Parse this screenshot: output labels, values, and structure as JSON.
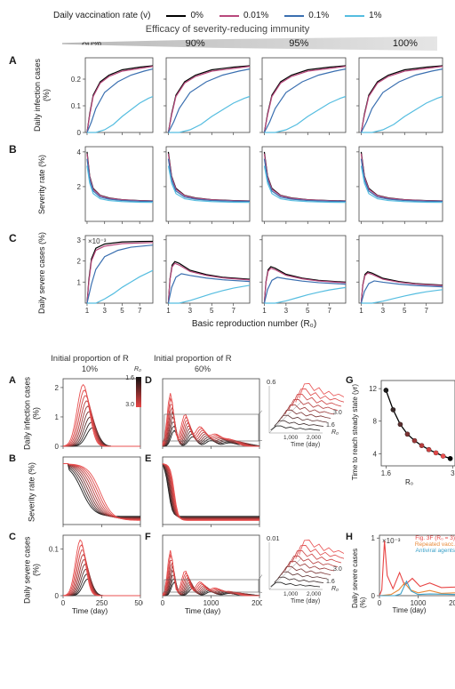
{
  "figure_top": {
    "legend_title": "Daily vaccination rate (v)",
    "legend": [
      {
        "label": "0%",
        "color": "#000000"
      },
      {
        "label": "0.01%",
        "color": "#b8487c"
      },
      {
        "label": "0.1%",
        "color": "#3a6fb0"
      },
      {
        "label": "1%",
        "color": "#55bde0"
      }
    ],
    "efficacy_title": "Efficacy of severity-reducing immunity",
    "efficacy_cols": [
      "80%",
      "90%",
      "95%",
      "100%"
    ],
    "xlabel": "Basic reproduction number (R₀)",
    "xticks": [
      1,
      3,
      5,
      7
    ],
    "xlim": [
      0.8,
      8.5
    ],
    "rows": [
      {
        "letter": "A",
        "ylabel": "Daily infection cases (%)",
        "ylim": [
          0,
          0.28
        ],
        "yticks": [
          0,
          0.1,
          0.2
        ],
        "panels_share_curves": true
      },
      {
        "letter": "B",
        "ylabel": "Severity rate (%)",
        "ylim": [
          0,
          4.3
        ],
        "yticks": [
          2,
          4
        ]
      },
      {
        "letter": "C",
        "ylabel": "Daily severe cases (%)",
        "note": "×10⁻³",
        "ylim": [
          0,
          3.2
        ],
        "yticks": [
          1,
          2,
          3
        ]
      }
    ],
    "curves_A": {
      "0%": [
        [
          1,
          0
        ],
        [
          1.3,
          0.07
        ],
        [
          1.7,
          0.14
        ],
        [
          2.5,
          0.19
        ],
        [
          3.5,
          0.215
        ],
        [
          5,
          0.235
        ],
        [
          7,
          0.245
        ],
        [
          8.5,
          0.25
        ]
      ],
      "0.01%": [
        [
          1,
          0
        ],
        [
          1.3,
          0.065
        ],
        [
          1.7,
          0.135
        ],
        [
          2.5,
          0.185
        ],
        [
          3.5,
          0.21
        ],
        [
          5,
          0.23
        ],
        [
          7,
          0.24
        ],
        [
          8.5,
          0.248
        ]
      ],
      "0.1%": [
        [
          1,
          0
        ],
        [
          1.5,
          0.04
        ],
        [
          2,
          0.09
        ],
        [
          3,
          0.15
        ],
        [
          4.5,
          0.19
        ],
        [
          6,
          0.215
        ],
        [
          7.5,
          0.23
        ],
        [
          8.5,
          0.238
        ]
      ],
      "1%": [
        [
          1,
          0
        ],
        [
          2,
          0
        ],
        [
          3,
          0.01
        ],
        [
          4,
          0.03
        ],
        [
          5,
          0.06
        ],
        [
          6,
          0.085
        ],
        [
          7,
          0.11
        ],
        [
          8,
          0.128
        ],
        [
          8.5,
          0.135
        ]
      ]
    },
    "curves_B_base": {
      "0%": [
        [
          1,
          4.0
        ],
        [
          1.3,
          2.6
        ],
        [
          1.7,
          1.9
        ],
        [
          2.5,
          1.5
        ],
        [
          3.5,
          1.35
        ],
        [
          5,
          1.25
        ],
        [
          7,
          1.2
        ],
        [
          8.5,
          1.18
        ]
      ],
      "0.01%": [
        [
          1,
          3.9
        ],
        [
          1.3,
          2.55
        ],
        [
          1.7,
          1.85
        ],
        [
          2.5,
          1.48
        ],
        [
          3.5,
          1.33
        ],
        [
          5,
          1.24
        ],
        [
          7,
          1.19
        ],
        [
          8.5,
          1.17
        ]
      ],
      "0.1%": [
        [
          1,
          3.6
        ],
        [
          1.3,
          2.4
        ],
        [
          1.7,
          1.75
        ],
        [
          2.5,
          1.4
        ],
        [
          3.5,
          1.28
        ],
        [
          5,
          1.2
        ],
        [
          7,
          1.16
        ],
        [
          8.5,
          1.15
        ]
      ],
      "1%": [
        [
          1,
          3.2
        ],
        [
          1.3,
          2.2
        ],
        [
          1.7,
          1.6
        ],
        [
          2.5,
          1.3
        ],
        [
          3.5,
          1.2
        ],
        [
          5,
          1.14
        ],
        [
          7,
          1.1
        ],
        [
          8.5,
          1.09
        ]
      ]
    },
    "curves_C_col1": {
      "0%": [
        [
          1,
          0
        ],
        [
          1.2,
          1.1
        ],
        [
          1.5,
          2.1
        ],
        [
          2,
          2.6
        ],
        [
          3,
          2.8
        ],
        [
          5,
          2.9
        ],
        [
          7,
          2.92
        ],
        [
          8.5,
          2.93
        ]
      ],
      "0.01%": [
        [
          1,
          0
        ],
        [
          1.2,
          1.0
        ],
        [
          1.5,
          2.0
        ],
        [
          2,
          2.5
        ],
        [
          3,
          2.7
        ],
        [
          5,
          2.82
        ],
        [
          7,
          2.85
        ],
        [
          8.5,
          2.87
        ]
      ],
      "0.1%": [
        [
          1,
          0
        ],
        [
          1.5,
          0.9
        ],
        [
          2,
          1.6
        ],
        [
          3,
          2.2
        ],
        [
          4.5,
          2.5
        ],
        [
          6,
          2.65
        ],
        [
          8.5,
          2.75
        ]
      ],
      "1%": [
        [
          1,
          0
        ],
        [
          2,
          0
        ],
        [
          3,
          0.2
        ],
        [
          4,
          0.45
        ],
        [
          5,
          0.75
        ],
        [
          6,
          1.0
        ],
        [
          7,
          1.25
        ],
        [
          8,
          1.45
        ],
        [
          8.5,
          1.55
        ]
      ]
    },
    "curves_C_col234_shape": {
      "0%": [
        [
          1,
          0
        ],
        [
          1.15,
          1.4
        ],
        [
          1.35,
          2.2
        ],
        [
          1.6,
          2.4
        ],
        [
          2,
          2.3
        ],
        [
          3,
          1.9
        ],
        [
          4.5,
          1.65
        ],
        [
          6,
          1.5
        ],
        [
          8.5,
          1.38
        ]
      ],
      "0.01%": [
        [
          1,
          0
        ],
        [
          1.15,
          1.35
        ],
        [
          1.35,
          2.1
        ],
        [
          1.6,
          2.3
        ],
        [
          2,
          2.2
        ],
        [
          3,
          1.83
        ],
        [
          4.5,
          1.6
        ],
        [
          6,
          1.46
        ],
        [
          8.5,
          1.34
        ]
      ],
      "0.1%": [
        [
          1,
          0
        ],
        [
          1.3,
          0.9
        ],
        [
          1.7,
          1.5
        ],
        [
          2.2,
          1.7
        ],
        [
          3,
          1.6
        ],
        [
          4.5,
          1.45
        ],
        [
          6,
          1.35
        ],
        [
          8.5,
          1.25
        ]
      ],
      "1%": [
        [
          1,
          0
        ],
        [
          2,
          0
        ],
        [
          3,
          0.15
        ],
        [
          4,
          0.35
        ],
        [
          5,
          0.55
        ],
        [
          6,
          0.72
        ],
        [
          7,
          0.87
        ],
        [
          8,
          0.98
        ],
        [
          8.5,
          1.03
        ]
      ]
    },
    "row_C_col_scale": [
      1.0,
      0.82,
      0.72,
      0.62
    ]
  },
  "figure_bottom": {
    "header_left": "Initial proportion of R",
    "header_right": "Initial proportion of R",
    "col_pct": [
      "10%",
      "60%"
    ],
    "gradient_colors": [
      "#1a1a1a",
      "#3a2a2a",
      "#5a2f2f",
      "#7a3333",
      "#993838",
      "#b53c3c",
      "#cc4242",
      "#dd4848",
      "#e85050"
    ],
    "R0_range_label": "R₀",
    "R0_min": "1.6",
    "R0_max": "3.0",
    "rows": [
      {
        "letter": "A",
        "ylabel": "Daily infection cases (%)",
        "ylim": [
          0,
          2.3
        ],
        "yticks": [
          0,
          1,
          2
        ]
      },
      {
        "letter": "B",
        "ylabel": "Severity rate (%)",
        "ylim": [
          0,
          100
        ],
        "yticks": []
      },
      {
        "letter": "C",
        "ylabel": "Daily severe cases (%)",
        "ylim": [
          0,
          0.13
        ],
        "yticks": [
          0,
          0.1
        ]
      }
    ],
    "left_xlim": [
      0,
      500
    ],
    "left_xticks": [
      0,
      250,
      500
    ],
    "right_xlim": [
      0,
      2000
    ],
    "right_xticks": [
      0,
      1000,
      2000
    ],
    "left_xlabel": "Time (day)",
    "right_xlabel": "Time (day)",
    "middle_letters": [
      "D",
      "E",
      "F"
    ],
    "right_col": {
      "G": {
        "letter": "G",
        "ylabel": "Time to reach steady state (yr)",
        "xlabel": "R₀",
        "xlim": [
          1.5,
          3.05
        ],
        "ylim": [
          2.5,
          13
        ],
        "xticks": [
          1.6,
          3.0
        ],
        "yticks": [
          4,
          8,
          12
        ],
        "points": [
          [
            1.6,
            11.8
          ],
          [
            1.75,
            9.4
          ],
          [
            1.9,
            7.6
          ],
          [
            2.05,
            6.4
          ],
          [
            2.2,
            5.6
          ],
          [
            2.35,
            5.0
          ],
          [
            2.5,
            4.5
          ],
          [
            2.65,
            4.1
          ],
          [
            2.8,
            3.7
          ],
          [
            2.95,
            3.4
          ]
        ]
      },
      "H": {
        "letter": "H",
        "ylabel": "Daily severe cases (%)",
        "note": "×10⁻³",
        "xlabel": "Time (day)",
        "xlim": [
          0,
          2000
        ],
        "ylim": [
          0,
          1.05
        ],
        "legend": [
          {
            "label": "Fig. 3F (R₀ = 3)",
            "color": "#e84545"
          },
          {
            "label": "Repeated vacc.",
            "color": "#e88a3a"
          },
          {
            "label": "Antiviral agents",
            "color": "#3aa0c8"
          }
        ],
        "series": {
          "red": [
            [
              0,
              0
            ],
            [
              60,
              0.1
            ],
            [
              130,
              0.95
            ],
            [
              200,
              0.35
            ],
            [
              350,
              0.12
            ],
            [
              520,
              0.4
            ],
            [
              650,
              0.18
            ],
            [
              850,
              0.3
            ],
            [
              1050,
              0.16
            ],
            [
              1300,
              0.22
            ],
            [
              1600,
              0.14
            ],
            [
              2000,
              0.15
            ]
          ],
          "orange": [
            [
              0,
              0
            ],
            [
              300,
              0.02
            ],
            [
              500,
              0.1
            ],
            [
              650,
              0.22
            ],
            [
              800,
              0.1
            ],
            [
              1000,
              0.05
            ],
            [
              1300,
              0.09
            ],
            [
              1600,
              0.04
            ],
            [
              2000,
              0.05
            ]
          ],
          "blue": [
            [
              0,
              0
            ],
            [
              400,
              0
            ],
            [
              550,
              0.03
            ],
            [
              700,
              0.25
            ],
            [
              820,
              0.08
            ],
            [
              1000,
              0.02
            ],
            [
              1300,
              0.03
            ],
            [
              2000,
              0.02
            ]
          ]
        }
      }
    },
    "panel3D": {
      "D_zlim": "0.6",
      "F_zlim": "0.01",
      "x_label": "Time (day)",
      "x_max": "2,000",
      "x_mid": "1,000",
      "y_label": "R₀",
      "y_min": "1.6",
      "y_max": "3.0"
    }
  },
  "style": {
    "axis_color": "#444444",
    "grid_color": "#e0e0e0",
    "tick_fontsize": 8
  }
}
